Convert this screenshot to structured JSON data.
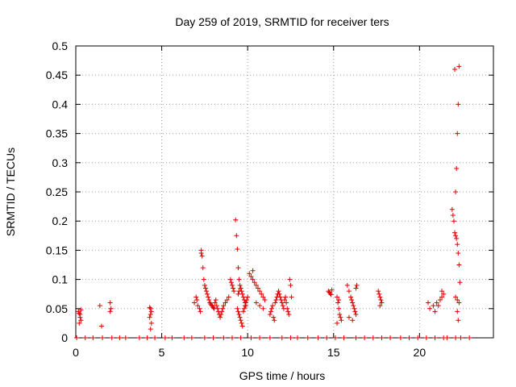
{
  "chart_data": {
    "type": "scatter",
    "title": "Day 259 of 2019, SRMTID for receiver ters",
    "xlabel": "GPS time / hours",
    "ylabel": "SRMTID / TECUs",
    "xlim": [
      0,
      24.3
    ],
    "ylim": [
      0,
      0.5
    ],
    "grid": true,
    "marker": "+",
    "color": "#e00000",
    "xticks": [
      0,
      5,
      10,
      15,
      20
    ],
    "xtick_labels": [
      "0",
      "5",
      "10",
      "15",
      "20"
    ],
    "yticks": [
      0,
      0.05,
      0.1,
      0.15,
      0.2,
      0.25,
      0.3,
      0.35,
      0.4,
      0.45,
      0.5
    ],
    "ytick_labels": [
      "0",
      "0.05",
      "0.1",
      "0.15",
      "0.2",
      "0.25",
      "0.3",
      "0.35",
      "0.4",
      "0.45",
      "0.5"
    ],
    "series": [
      {
        "name": "SRMTID",
        "x": [
          0.15,
          0.2,
          0.25,
          0.3,
          0.2,
          0.3,
          0.25,
          1.4,
          1.5,
          2.0,
          2.05,
          2.0,
          4.3,
          4.35,
          4.4,
          4.35,
          4.3,
          4.4,
          4.35,
          6.9,
          7.0,
          7.05,
          7.1,
          7.2,
          7.25,
          7.3,
          7.3,
          7.35,
          7.4,
          7.45,
          7.5,
          7.55,
          7.6,
          7.65,
          7.7,
          7.75,
          7.8,
          7.85,
          7.9,
          7.95,
          8.0,
          8.05,
          8.1,
          8.15,
          8.2,
          8.25,
          8.3,
          8.35,
          8.4,
          8.45,
          8.5,
          8.55,
          8.6,
          8.7,
          8.8,
          8.9,
          9.0,
          9.05,
          9.1,
          9.15,
          9.2,
          9.3,
          9.35,
          9.4,
          9.45,
          9.5,
          9.55,
          9.6,
          9.65,
          9.7,
          9.75,
          9.8,
          9.85,
          9.9,
          9.4,
          9.45,
          9.5,
          9.55,
          9.6,
          9.65,
          9.7,
          9.75,
          9.8,
          9.85,
          9.9,
          9.95,
          10.0,
          9.45,
          9.5,
          9.6,
          10.1,
          10.2,
          10.3,
          10.4,
          10.5,
          10.6,
          10.7,
          10.8,
          10.9,
          11.0,
          10.3,
          10.5,
          10.7,
          10.9,
          11.3,
          11.35,
          11.4,
          11.45,
          11.5,
          11.55,
          11.6,
          11.65,
          11.7,
          11.75,
          11.8,
          11.85,
          11.9,
          11.95,
          12.0,
          12.05,
          12.1,
          12.15,
          12.2,
          12.25,
          12.3,
          12.35,
          12.4,
          12.45,
          12.5,
          12.55,
          14.7,
          14.75,
          14.8,
          14.85,
          14.9,
          15.2,
          15.25,
          15.3,
          15.35,
          15.4,
          15.45,
          15.2,
          15.3,
          15.8,
          15.9,
          16.0,
          16.05,
          16.1,
          16.15,
          16.2,
          16.25,
          16.3,
          16.35,
          15.9,
          16.1,
          16.3,
          17.6,
          17.65,
          17.7,
          17.75,
          17.8,
          17.7,
          20.5,
          20.6,
          20.8,
          20.9,
          21.0,
          21.1,
          21.2,
          21.3,
          21.3,
          21.4,
          21.9,
          21.95,
          22.0,
          22.05,
          22.1,
          22.15,
          22.2,
          22.25,
          22.3,
          22.35,
          22.1,
          22.15,
          22.2,
          22.25,
          22.3,
          22.05,
          22.1,
          22.2,
          22.25,
          22.3,
          22.2,
          0.05,
          0.55,
          1.0,
          1.55,
          2.1,
          2.55,
          2.9,
          3.7,
          4.15,
          4.6,
          5.2,
          5.6,
          6.3,
          6.75,
          7.5,
          8.0,
          8.6,
          9.1,
          9.6,
          10.2,
          10.7,
          11.3,
          12.0,
          12.5,
          12.9,
          13.5,
          14.1,
          14.6,
          15.1,
          15.6,
          16.3,
          16.8,
          17.3,
          17.8,
          18.3,
          18.9,
          19.4,
          19.9,
          20.4,
          20.9,
          21.4,
          22.4,
          22.9,
          22.1,
          21.6
        ],
        "y": [
          0.045,
          0.042,
          0.035,
          0.03,
          0.025,
          0.048,
          0.04,
          0.055,
          0.02,
          0.06,
          0.05,
          0.045,
          0.052,
          0.05,
          0.045,
          0.04,
          0.035,
          0.025,
          0.015,
          0.06,
          0.07,
          0.065,
          0.055,
          0.05,
          0.045,
          0.15,
          0.145,
          0.14,
          0.12,
          0.1,
          0.09,
          0.085,
          0.08,
          0.075,
          0.07,
          0.065,
          0.06,
          0.058,
          0.056,
          0.054,
          0.052,
          0.05,
          0.06,
          0.065,
          0.055,
          0.05,
          0.045,
          0.04,
          0.035,
          0.04,
          0.045,
          0.05,
          0.055,
          0.06,
          0.065,
          0.07,
          0.1,
          0.095,
          0.09,
          0.085,
          0.08,
          0.202,
          0.175,
          0.152,
          0.12,
          0.1,
          0.09,
          0.085,
          0.08,
          0.075,
          0.07,
          0.065,
          0.06,
          0.055,
          0.05,
          0.045,
          0.04,
          0.035,
          0.03,
          0.025,
          0.02,
          0.045,
          0.05,
          0.055,
          0.06,
          0.065,
          0.07,
          0.075,
          0.08,
          0.085,
          0.11,
          0.105,
          0.1,
          0.095,
          0.09,
          0.085,
          0.08,
          0.075,
          0.07,
          0.065,
          0.115,
          0.06,
          0.055,
          0.05,
          0.04,
          0.045,
          0.05,
          0.055,
          0.035,
          0.03,
          0.06,
          0.065,
          0.07,
          0.075,
          0.08,
          0.075,
          0.07,
          0.065,
          0.06,
          0.055,
          0.05,
          0.065,
          0.07,
          0.06,
          0.05,
          0.045,
          0.04,
          0.1,
          0.09,
          0.07,
          0.08,
          0.078,
          0.076,
          0.074,
          0.082,
          0.07,
          0.06,
          0.05,
          0.04,
          0.035,
          0.03,
          0.025,
          0.065,
          0.09,
          0.08,
          0.07,
          0.065,
          0.06,
          0.055,
          0.05,
          0.045,
          0.04,
          0.09,
          0.035,
          0.03,
          0.085,
          0.08,
          0.075,
          0.07,
          0.065,
          0.06,
          0.055,
          0.06,
          0.05,
          0.055,
          0.045,
          0.06,
          0.055,
          0.065,
          0.07,
          0.08,
          0.075,
          0.22,
          0.21,
          0.2,
          0.18,
          0.175,
          0.17,
          0.16,
          0.145,
          0.125,
          0.095,
          0.25,
          0.29,
          0.35,
          0.4,
          0.465,
          0.46,
          0.07,
          0.045,
          0.03,
          0.06,
          0.065,
          0,
          0,
          0,
          0,
          0,
          0,
          0,
          0,
          0,
          0,
          0,
          0,
          0,
          0,
          0,
          0,
          0,
          0,
          0,
          0,
          0,
          0,
          0,
          0,
          0,
          0,
          0,
          0,
          0,
          0,
          0,
          0,
          0,
          0,
          0,
          0,
          0,
          0,
          0,
          0,
          0,
          0,
          0,
          0,
          0
        ]
      }
    ]
  }
}
